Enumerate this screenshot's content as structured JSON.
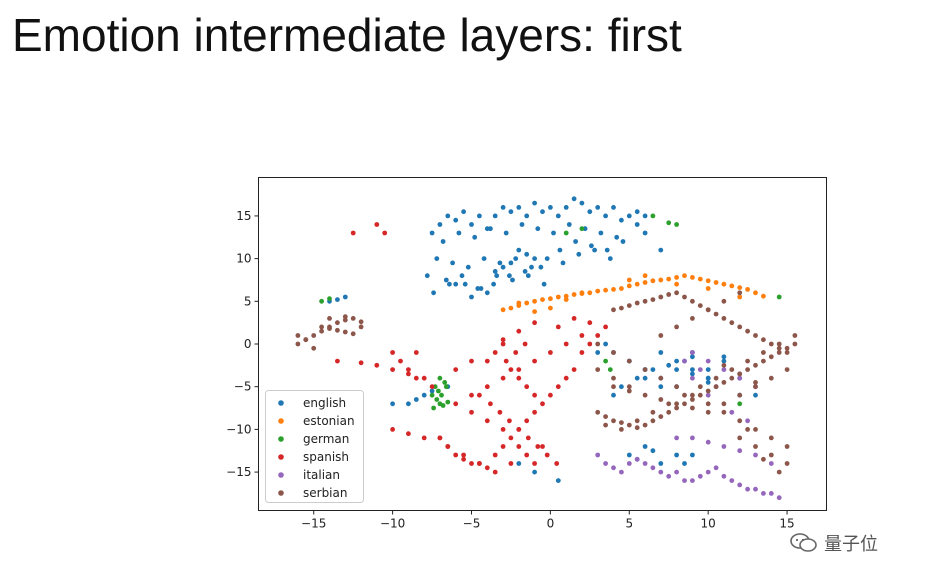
{
  "slide": {
    "title": "Emotion intermediate layers: first"
  },
  "watermark": {
    "text": "量子位",
    "icon": "wechat-icon"
  },
  "chart_data": {
    "type": "scatter",
    "title": "",
    "xlabel": "",
    "ylabel": "",
    "xlim": [
      -18.5,
      17.5
    ],
    "ylim": [
      -19.5,
      19.5
    ],
    "xticks": [
      -15,
      -10,
      -5,
      0,
      5,
      10,
      15
    ],
    "yticks": [
      -15,
      -10,
      -5,
      0,
      5,
      10,
      15
    ],
    "xtick_labels": [
      "−15",
      "−10",
      "−5",
      "0",
      "5",
      "10",
      "15"
    ],
    "ytick_labels": [
      "−15",
      "−10",
      "−5",
      "0",
      "5",
      "10",
      "15"
    ],
    "grid": false,
    "legend_position": "lower-left",
    "series": [
      {
        "name": "english",
        "color": "#1f77b4",
        "x": [
          -7.5,
          -7,
          -6.5,
          -6,
          -5.5,
          -5,
          -4.5,
          -4,
          -3.5,
          -3,
          -2.5,
          -2,
          -1.5,
          -1,
          -0.5,
          0,
          0.5,
          1,
          1.5,
          2,
          2.5,
          3,
          3.5,
          4,
          4.5,
          5,
          5.5,
          6,
          -6.8,
          -5.8,
          -4.8,
          -3.8,
          -2.8,
          -1.8,
          -0.8,
          0.2,
          1.2,
          2.2,
          3.2,
          4.2,
          -7.2,
          -6.2,
          -5.2,
          -4.2,
          -3.2,
          -2.2,
          -1.2,
          -0.2,
          0.8,
          1.8,
          2.8,
          3.8,
          -7.8,
          -6.6,
          -5.4,
          -4.4,
          -3.4,
          -2.4,
          -1.4,
          -0.4,
          0.6,
          1.6,
          2.6,
          3.6,
          4.6,
          -7.4,
          -6.4,
          -5.6,
          -4.6,
          -3.6,
          -2.6,
          -1.6,
          -0.6,
          -2,
          -1.5,
          -1,
          -3,
          -2.5,
          -5,
          -4,
          -6,
          -3.5,
          5.5,
          6,
          7,
          -10,
          -9,
          -8.5,
          -8,
          -7.5,
          -6.5,
          -14,
          -13.5,
          -13,
          5,
          6,
          7,
          8,
          5.5,
          6.5,
          8.5,
          9,
          5,
          6,
          7,
          8,
          9,
          10,
          4,
          4.5,
          5.5,
          6.5,
          7.5,
          8.5,
          3,
          3.5,
          4,
          5,
          6,
          9,
          10,
          11,
          12,
          6,
          7,
          8,
          9,
          10,
          12,
          13,
          -2,
          -1,
          0.5,
          7,
          8,
          9,
          10,
          11
        ],
        "y": [
          13,
          14,
          15,
          14.5,
          15.5,
          14,
          15,
          13.5,
          15,
          16,
          15.5,
          16,
          15,
          16.5,
          15.5,
          16,
          15,
          16,
          17,
          16.5,
          15.5,
          16,
          15,
          16,
          14.5,
          15,
          15.5,
          15,
          12,
          13,
          12.5,
          13.5,
          13,
          14,
          13.5,
          13,
          14,
          13.5,
          13,
          12.5,
          10,
          9.5,
          9,
          10,
          9.5,
          10,
          9,
          10,
          9.5,
          10.5,
          11,
          10,
          8,
          7.5,
          7,
          6.5,
          8,
          7.5,
          8,
          7,
          11,
          12,
          11.5,
          11,
          12,
          6,
          7,
          8,
          6.5,
          7,
          8,
          8.5,
          9,
          11,
          10.5,
          10,
          9,
          9.5,
          5.5,
          6,
          7,
          8.5,
          14,
          13,
          11,
          -7,
          -7,
          -6.5,
          -6,
          -5.5,
          -5,
          5,
          5.2,
          5.5,
          -13,
          -12,
          -14,
          -13,
          -13.5,
          -12.5,
          -14,
          -13,
          -2,
          -3,
          -4,
          -5,
          -3.5,
          -4.5,
          -6,
          -5,
          -4,
          -3,
          -2.5,
          -2,
          -1,
          0,
          -1,
          -2,
          -3,
          -1,
          -4,
          -2,
          -6,
          -4,
          -5,
          -3,
          -1.5,
          -3,
          -4,
          -6,
          -14,
          -15,
          -16,
          -1,
          -2,
          -3,
          -4,
          -1.5
        ]
      },
      {
        "name": "estonian",
        "color": "#ff7f0e",
        "x": [
          -3,
          -2.5,
          -2,
          -1.5,
          -1,
          -0.5,
          0,
          0.5,
          1,
          1.5,
          2,
          2.5,
          3,
          3.5,
          4,
          4.5,
          5,
          5.5,
          6,
          6.5,
          7,
          7.5,
          8,
          8.5,
          9,
          9.5,
          10,
          10.5,
          11,
          11.5,
          12,
          12.5,
          13,
          13.5,
          -2,
          -1,
          0,
          1,
          2,
          5,
          6,
          8,
          10,
          12
        ],
        "y": [
          4,
          4.2,
          4.5,
          4.8,
          5,
          5.2,
          5.3,
          5.5,
          5.6,
          5.8,
          5.9,
          6,
          6.2,
          6.3,
          6.4,
          6.5,
          6.8,
          7,
          7.2,
          7.4,
          7.5,
          7.6,
          7.8,
          8,
          7.8,
          7.6,
          7.4,
          7.2,
          7,
          6.8,
          6.6,
          6.4,
          6,
          5.6,
          4.8,
          3.8,
          4.2,
          5.2,
          6,
          7.5,
          8,
          7,
          6.5,
          5.5
        ]
      },
      {
        "name": "german",
        "color": "#2ca02c",
        "x": [
          -7.5,
          -7.2,
          -7,
          -6.8,
          -6.5,
          -7.3,
          -7.1,
          -6.9,
          -6.7,
          -7.4,
          -7,
          -6.6,
          -14.5,
          -14,
          3.5,
          3.8,
          6.5,
          8,
          7.5,
          2,
          1,
          14.5,
          12
        ],
        "y": [
          -6,
          -6.5,
          -7,
          -7.2,
          -6.8,
          -5,
          -5.5,
          -6,
          -4.5,
          -7.5,
          -4,
          -5,
          5,
          5.3,
          -2,
          -3,
          15,
          14,
          14.2,
          13.5,
          13,
          5.5,
          -7
        ]
      },
      {
        "name": "spanish",
        "color": "#d62728",
        "x": [
          -12.5,
          -11,
          -10.5,
          -10,
          -9.5,
          -9,
          -8.5,
          -8,
          -7.5,
          -10,
          -9,
          -8,
          -7,
          -6.5,
          -6,
          -5.5,
          -5,
          -4.5,
          -4,
          -3.5,
          -3,
          -2.5,
          -2,
          -1.5,
          -1,
          -0.5,
          0,
          0.5,
          1,
          1.5,
          2,
          2.5,
          3,
          3.5,
          -4,
          -3.5,
          -3,
          -2.5,
          -2,
          -1.5,
          -1,
          -4.5,
          -3.8,
          -3.2,
          -2.6,
          -2,
          -1.4,
          -0.8,
          -0.2,
          0.4,
          -6,
          -5,
          -4,
          -3,
          -2,
          -1,
          0,
          1,
          2,
          -7,
          -6.5,
          -5.5,
          -4.5,
          -3.5,
          -2.5,
          -1.5,
          -0.5,
          -2.8,
          -2.2,
          -1.6,
          -13.5,
          -12,
          -11,
          -10,
          -9,
          -8.5,
          -5,
          -4,
          -3,
          -2,
          -1,
          0.5,
          1.5,
          2.5,
          -3,
          -2,
          -1,
          -6,
          -5
        ],
        "y": [
          13,
          14,
          13,
          -1,
          -2,
          -3,
          -1,
          -4,
          -5,
          -10,
          -10.5,
          -11,
          -11,
          -12,
          -13,
          -13.5,
          -14,
          -14,
          -14.5,
          -13,
          -12,
          -11,
          -10,
          -9,
          -8,
          -7,
          -6,
          -5,
          -4,
          -3,
          -1,
          0,
          1,
          2,
          -2,
          -1,
          0,
          -3,
          -4,
          -5,
          -6,
          -6,
          -7,
          -8,
          -9,
          -10,
          -11,
          -12,
          -13,
          -14,
          -7,
          -6,
          -5,
          -4,
          -3,
          -2,
          -1,
          0,
          1,
          -11,
          -12,
          -13,
          -14,
          -15,
          -14,
          -13,
          -12,
          -2,
          -1,
          0,
          -2,
          -2.2,
          -2.5,
          -3,
          -3.5,
          -4,
          -8,
          -9,
          -10,
          -12,
          -14,
          2,
          3,
          2.5,
          0.5,
          1.5,
          2.5,
          -3,
          -2
        ]
      },
      {
        "name": "italian",
        "color": "#9467bd",
        "x": [
          3,
          3.5,
          4,
          4.5,
          5,
          5.5,
          6,
          6.5,
          7,
          7.5,
          8,
          8.5,
          9,
          9.5,
          10,
          10.5,
          11,
          11.5,
          12,
          12.5,
          13,
          13.5,
          14,
          14.5,
          8,
          9,
          10,
          11,
          12,
          13,
          14,
          9,
          10,
          11,
          12,
          13,
          9.5,
          10.5,
          11.5,
          12.5,
          8.5,
          9,
          10
        ],
        "y": [
          -13,
          -14,
          -14.5,
          -15,
          -14,
          -13.5,
          -14,
          -14.5,
          -15,
          -15.5,
          -15,
          -16,
          -16,
          -15.5,
          -15,
          -14.5,
          -15.5,
          -16,
          -16.5,
          -17,
          -17,
          -17.5,
          -17.5,
          -18,
          -11,
          -11,
          -11.5,
          -12,
          -12.5,
          -13,
          -14,
          -1,
          -2,
          -3,
          -4,
          -5,
          -3,
          -5,
          -8,
          -9,
          -2,
          -4,
          -6
        ]
      },
      {
        "name": "serbian",
        "color": "#8c564b",
        "x": [
          -16,
          -15.5,
          -15,
          -14.5,
          -14,
          -13.5,
          -13,
          -12.5,
          -12,
          -14.5,
          -14,
          -13.5,
          -13,
          -12.5,
          -15,
          -15.5,
          -16,
          -14,
          -13,
          -12,
          4,
          4.5,
          5,
          5.5,
          6,
          6.5,
          7,
          7.5,
          8,
          8.5,
          9,
          9.5,
          10,
          10.5,
          11,
          11.5,
          12,
          12.5,
          13,
          13.5,
          14,
          14.5,
          15,
          3,
          3.5,
          4,
          4.5,
          5,
          5.5,
          6,
          6.5,
          7,
          7.5,
          8,
          8.5,
          9,
          9.5,
          10,
          10.5,
          11,
          11.5,
          12,
          12.5,
          13,
          13.5,
          14,
          14.5,
          15,
          15.5,
          4,
          5,
          6,
          7,
          8,
          9,
          10,
          11,
          12,
          13,
          14,
          15,
          3.5,
          4.5,
          5.5,
          6.5,
          7.5,
          8.5,
          9.5,
          10.5,
          11.5,
          12.5,
          13.5,
          14.5,
          15.5,
          12,
          13,
          14,
          15,
          12.5,
          13.5,
          14.5,
          11,
          12,
          13,
          3,
          4,
          5,
          6,
          7,
          8,
          9,
          10,
          11,
          12,
          13,
          14,
          15,
          7,
          8,
          9,
          10,
          11,
          12,
          3,
          4,
          5
        ],
        "y": [
          0,
          0.5,
          1,
          1.5,
          2,
          2.5,
          2.8,
          3,
          2.6,
          2,
          1.8,
          1.6,
          1.4,
          1.2,
          -0.5,
          0.5,
          1,
          3,
          3.2,
          2,
          4,
          4.2,
          4.5,
          4.8,
          5,
          5.2,
          5.5,
          5.8,
          6,
          5.5,
          5,
          4.5,
          4,
          3.5,
          3,
          2.5,
          2,
          1.5,
          1,
          0.5,
          0,
          -0.5,
          -1,
          -8,
          -8.5,
          -9,
          -9.2,
          -9.5,
          -9.8,
          -9.5,
          -9,
          -8.5,
          -8,
          -7.5,
          -7,
          -6.5,
          -6,
          -5.5,
          -5,
          -4.5,
          -4,
          -3.5,
          -3,
          -2.5,
          -2,
          -1.5,
          -1,
          -0.5,
          0,
          -5,
          -5.5,
          -6,
          -6.5,
          -7,
          -7.5,
          -8,
          -7,
          -6,
          -5,
          -4,
          -3,
          -9.5,
          -10,
          -9,
          -8,
          -7,
          -6,
          -5,
          -4,
          -3,
          -2,
          -1,
          0,
          1,
          -11,
          -12,
          -13,
          -14,
          -10,
          -13.5,
          -15,
          -2.5,
          -3.5,
          -4.5,
          0,
          -1,
          -2,
          -3,
          -4,
          -5,
          -6,
          -7,
          -8,
          -9,
          -10,
          -11,
          -12,
          1,
          2,
          3,
          4,
          5,
          6,
          -3,
          -4,
          -5
        ]
      }
    ]
  }
}
